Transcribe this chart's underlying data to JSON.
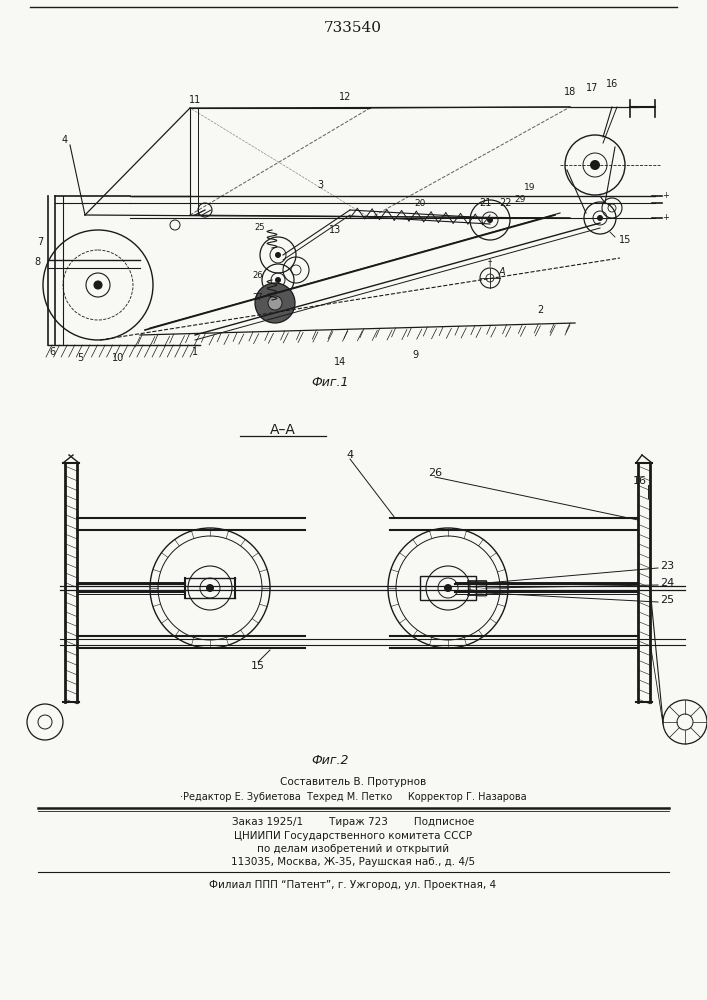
{
  "patent_number": "733540",
  "fig1_caption": "Фиг.1",
  "fig2_caption": "Фиг.2",
  "section_label": "A–A",
  "footer_line1": "Составитель В. Протурнов",
  "footer_line2": "·Редактор Е. Зубиетова  Техред М. Петко     Корректор Г. Назарова",
  "footer_line3": "Заказ 1925/1        Тираж 723        Подписное",
  "footer_line4": "ЦНИИПИ Государственного комитета СССР",
  "footer_line5": "по делам изобретений и открытий",
  "footer_line6": "113035, Москва, Ж-35, Раушская наб., д. 4/5",
  "footer_line7": "Филиал ППП “Патент”, г. Ужгород, ул. Проектная, 4",
  "bg_color": "#f8f8f5",
  "line_color": "#1a1a1a"
}
